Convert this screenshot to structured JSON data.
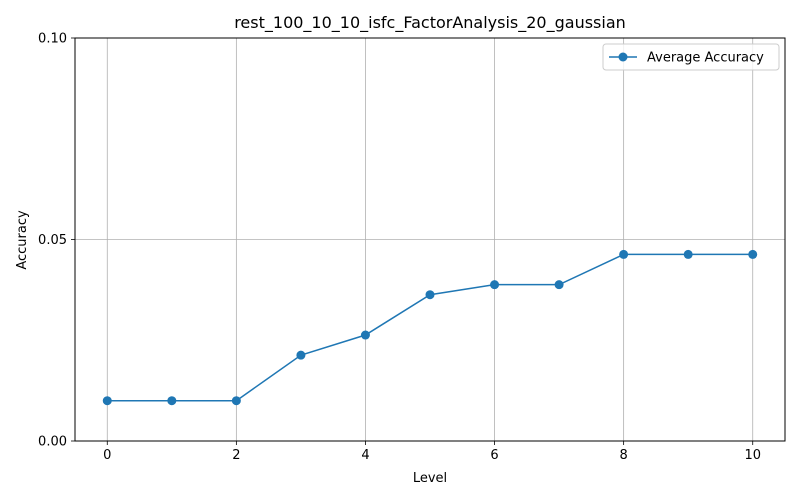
{
  "chart_data": {
    "type": "line",
    "title": "rest_100_10_10_isfc_FactorAnalysis_20_gaussian",
    "xlabel": "Level",
    "ylabel": "Accuracy",
    "xlim": [
      -0.5,
      10.5
    ],
    "ylim": [
      0.0,
      0.1
    ],
    "xticks": [
      0,
      2,
      4,
      6,
      8,
      10
    ],
    "xtick_labels": [
      "0",
      "2",
      "4",
      "6",
      "8",
      "10"
    ],
    "yticks": [
      0.0,
      0.05,
      0.1
    ],
    "ytick_labels": [
      "0.00",
      "0.05",
      "0.10"
    ],
    "grid": true,
    "legend_position": "top-right",
    "series": [
      {
        "name": "Average Accuracy",
        "color": "#1f77b4",
        "marker": "circle",
        "x": [
          0,
          1,
          2,
          3,
          4,
          5,
          6,
          7,
          8,
          9,
          10
        ],
        "values": [
          0.01,
          0.01,
          0.01,
          0.0213,
          0.0263,
          0.0363,
          0.0388,
          0.0388,
          0.0463,
          0.0463,
          0.0463
        ]
      }
    ]
  }
}
